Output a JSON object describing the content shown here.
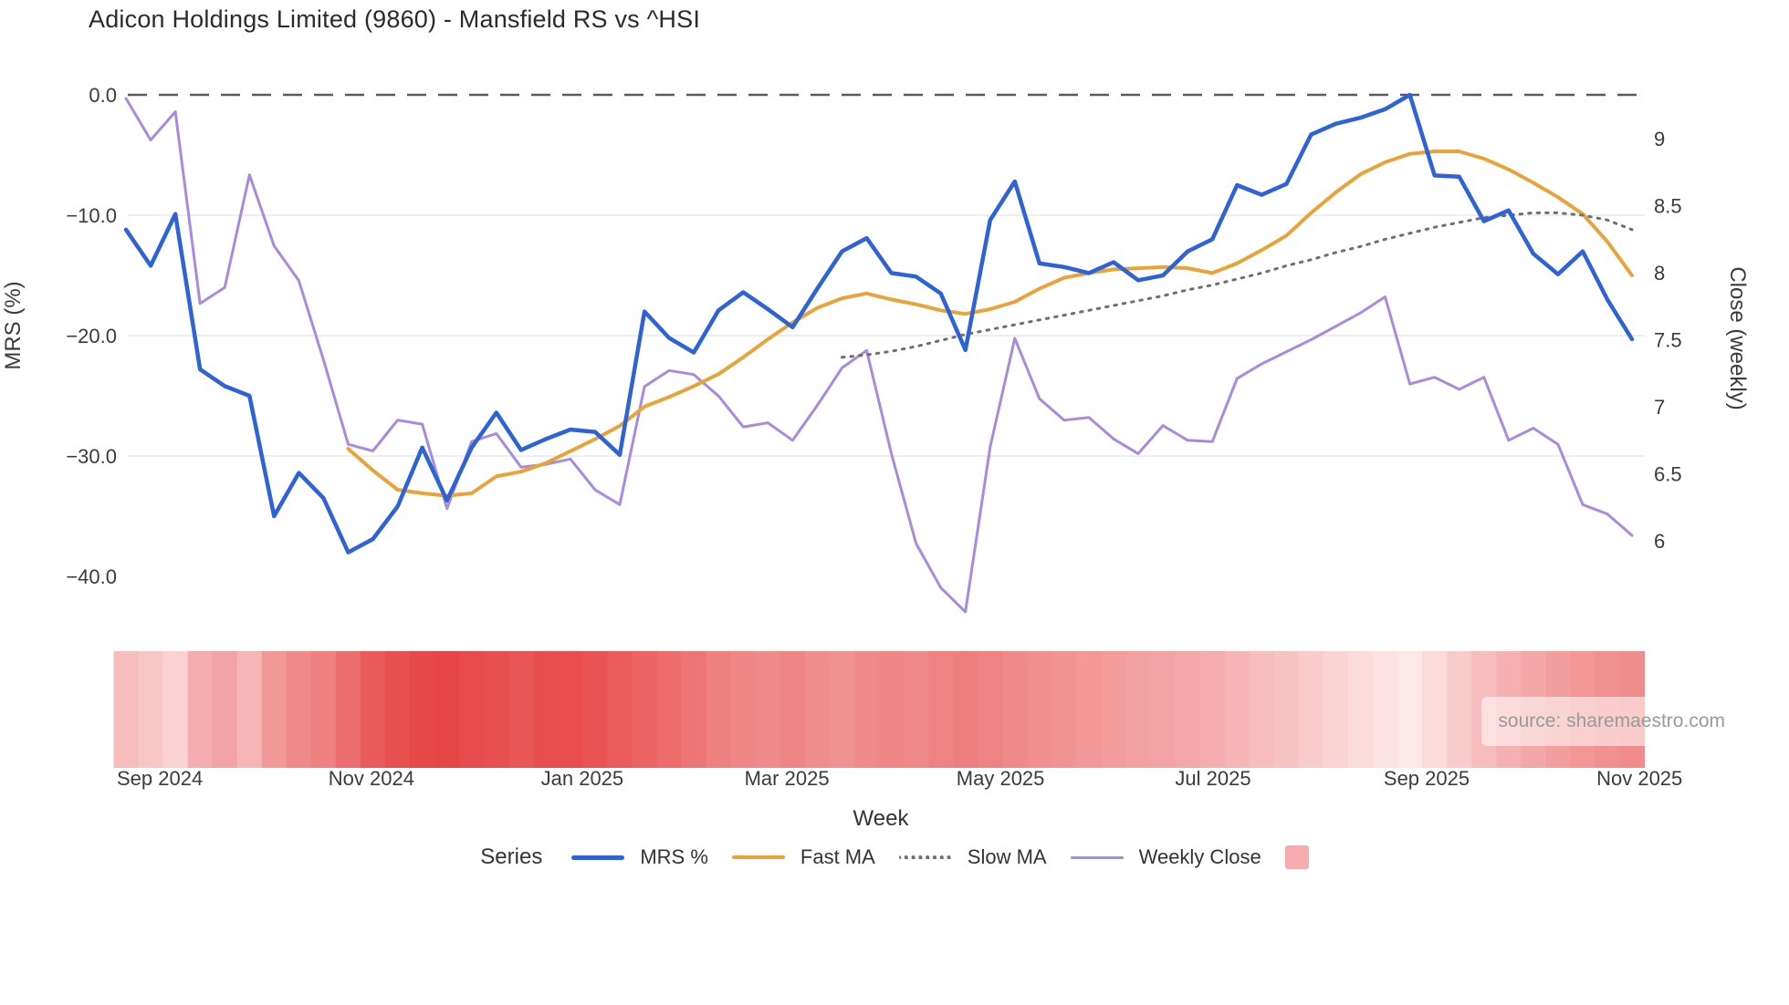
{
  "title": "Adicon Holdings Limited (9860) - Mansfield RS vs ^HSI",
  "source_note": "source: sharemaestro.com",
  "colors": {
    "mrs_blue": "#2d63d6",
    "fast_ma_orange": "#e8a43a",
    "slow_ma_gray": "#6f6f6f",
    "close_purple": "#a88bdc",
    "zero_line": "#5a5a64",
    "gridline": "#ededf5",
    "tick_text": "#3b3b3b",
    "heat_legend_pink": "#f6abae"
  },
  "chart_data": {
    "type": "line",
    "title": "Adicon Holdings Limited (9860) - Mansfield RS vs ^HSI",
    "xlabel": "Week",
    "ylabel_left": "MRS (%)",
    "ylabel_right": "Close (weekly)",
    "ylim_left": [
      -43,
      2
    ],
    "ylim_right": [
      5.4,
      9.35
    ],
    "grid": true,
    "zero_reference_line": 0,
    "legend_position": "bottom",
    "yticks_left": [
      {
        "label": "0.0",
        "value": 0
      },
      {
        "label": "−10.0",
        "value": -10
      },
      {
        "label": "−20.0",
        "value": -20
      },
      {
        "label": "−30.0",
        "value": -30
      },
      {
        "label": "−40.0",
        "value": -40
      }
    ],
    "yticks_right": [
      {
        "label": "9",
        "value": 9
      },
      {
        "label": "8.5",
        "value": 8.5
      },
      {
        "label": "8",
        "value": 8
      },
      {
        "label": "7.5",
        "value": 7.5
      },
      {
        "label": "7",
        "value": 7
      },
      {
        "label": "6.5",
        "value": 6.5
      },
      {
        "label": "6",
        "value": 6
      }
    ],
    "xticks": [
      {
        "label": "Sep 2024",
        "week": 1.37
      },
      {
        "label": "Nov 2024",
        "week": 9.94
      },
      {
        "label": "Jan 2025",
        "week": 18.48
      },
      {
        "label": "Mar 2025",
        "week": 26.77
      },
      {
        "label": "May 2025",
        "week": 35.42
      },
      {
        "label": "Jul 2025",
        "week": 44.03
      },
      {
        "label": "Sep 2025",
        "week": 52.68
      },
      {
        "label": "Nov 2025",
        "week": 61.3
      }
    ],
    "series": [
      {
        "id": "close",
        "name": "Weekly Close",
        "axis": "right",
        "color": "#a88bdc",
        "style": "solid",
        "width": 3,
        "start_week": 0,
        "values": [
          9.3,
          8.99,
          9.2,
          7.77,
          7.89,
          8.73,
          8.2,
          7.94,
          7.35,
          6.72,
          6.67,
          6.9,
          6.87,
          6.24,
          6.74,
          6.8,
          6.55,
          6.57,
          6.61,
          6.38,
          6.27,
          7.15,
          7.27,
          7.24,
          7.08,
          6.85,
          6.88,
          6.75,
          7.01,
          7.29,
          7.42,
          6.65,
          5.98,
          5.65,
          5.47,
          6.7,
          7.51,
          7.06,
          6.9,
          6.92,
          6.76,
          6.65,
          6.86,
          6.75,
          6.74,
          7.21,
          7.32,
          7.41,
          7.5,
          7.6,
          7.7,
          7.82,
          7.17,
          7.22,
          7.13,
          7.22,
          6.75,
          6.84,
          6.72,
          6.27,
          6.2,
          6.04
        ]
      },
      {
        "id": "fast_ma",
        "name": "Fast MA",
        "axis": "left",
        "color": "#e8a43a",
        "style": "solid",
        "width": 4,
        "start_week": 9,
        "values": [
          -29.4,
          -31.2,
          -32.8,
          -33.1,
          -33.3,
          -33.1,
          -31.7,
          -31.3,
          -30.6,
          -29.6,
          -28.6,
          -27.5,
          -25.9,
          -25.1,
          -24.2,
          -23.2,
          -21.8,
          -20.3,
          -18.9,
          -17.7,
          -16.9,
          -16.5,
          -17.0,
          -17.4,
          -17.9,
          -18.2,
          -17.8,
          -17.2,
          -16.1,
          -15.2,
          -14.8,
          -14.5,
          -14.4,
          -14.3,
          -14.4,
          -14.8,
          -14.0,
          -12.9,
          -11.7,
          -9.8,
          -8.1,
          -6.6,
          -5.6,
          -4.9,
          -4.7,
          -4.7,
          -5.3,
          -6.2,
          -7.3,
          -8.5,
          -9.9,
          -12.2,
          -15.0
        ]
      },
      {
        "id": "slow_ma",
        "name": "Slow MA",
        "axis": "left",
        "color": "#6f6f6f",
        "style": "dotted",
        "width": 3,
        "start_week": 29,
        "values": [
          -21.8,
          -21.6,
          -21.3,
          -20.9,
          -20.4,
          -19.9,
          -19.5,
          -19.1,
          -18.7,
          -18.3,
          -17.9,
          -17.5,
          -17.1,
          -16.7,
          -16.2,
          -15.8,
          -15.3,
          -14.8,
          -14.2,
          -13.7,
          -13.1,
          -12.6,
          -12.0,
          -11.5,
          -11.0,
          -10.6,
          -10.2,
          -10.0,
          -9.8,
          -9.8,
          -10.0,
          -10.4,
          -11.2
        ]
      },
      {
        "id": "mrs",
        "name": "MRS %",
        "axis": "left",
        "color": "#2d63d6",
        "style": "solid",
        "width": 4.5,
        "start_week": 0,
        "values": [
          -11.2,
          -14.2,
          -9.9,
          -22.8,
          -24.2,
          -25.0,
          -35.0,
          -31.4,
          -33.5,
          -38.0,
          -36.9,
          -34.2,
          -29.3,
          -33.7,
          -29.3,
          -26.4,
          -29.5,
          -28.6,
          -27.8,
          -28.0,
          -29.9,
          -18.0,
          -20.2,
          -21.4,
          -17.9,
          -16.4,
          -17.8,
          -19.3,
          -16.1,
          -13.0,
          -11.9,
          -14.8,
          -15.1,
          -16.5,
          -21.2,
          -10.4,
          -7.2,
          -14.0,
          -14.3,
          -14.8,
          -13.9,
          -15.4,
          -15.0,
          -13.0,
          -12.0,
          -7.5,
          -8.3,
          -7.4,
          -3.3,
          -2.4,
          -1.9,
          -1.2,
          0.0,
          -6.7,
          -6.8,
          -10.5,
          -9.6,
          -13.2,
          -14.9,
          -13.0,
          -17.0,
          -20.3
        ]
      }
    ],
    "heatmap_strip": {
      "description": "weekly red intensity band under chart",
      "colors": [
        "#f7bcbc",
        "#f9c6c6",
        "#fbd2d2",
        "#f5aeae",
        "#f3a3a3",
        "#f6b6b6",
        "#f19898",
        "#ef8a8a",
        "#ee8080",
        "#ec6e6e",
        "#ea5a5a",
        "#e84f4f",
        "#e74949",
        "#e74646",
        "#e84b4b",
        "#e85050",
        "#e95656",
        "#e84e4e",
        "#e94d4d",
        "#ea5353",
        "#eb5b5b",
        "#ec6464",
        "#ed6d6d",
        "#ee7575",
        "#ef8080",
        "#f08787",
        "#f08b8b",
        "#ef8686",
        "#f08d8d",
        "#f19292",
        "#f08b8b",
        "#ef8787",
        "#f08989",
        "#ef8383",
        "#ee7e7e",
        "#ef8282",
        "#f08a8a",
        "#f18f8f",
        "#f19393",
        "#f29898",
        "#f29c9c",
        "#f3a0a0",
        "#f3a3a3",
        "#f4a8a8",
        "#f5adad",
        "#f6b4b4",
        "#f7bcbc",
        "#f8c3c3",
        "#f9cbcb",
        "#fad4d4",
        "#fbdbdb",
        "#fce2e2",
        "#fde8e8",
        "#fbdada",
        "#f9cccc",
        "#f7bdbd",
        "#f5b0b0",
        "#f4a7a7",
        "#f39e9e",
        "#f29696",
        "#f19090",
        "#f18c8c"
      ]
    }
  },
  "legend": {
    "series_label": "Series",
    "items": [
      {
        "label": "MRS %",
        "swatch": "line",
        "style": "solid",
        "color": "#2d63d6",
        "thickness": 5
      },
      {
        "label": "Fast MA",
        "swatch": "line",
        "style": "solid",
        "color": "#e8a43a",
        "thickness": 4
      },
      {
        "label": "Slow MA",
        "swatch": "line",
        "style": "dotted",
        "color": "#6f6f6f",
        "thickness": 4
      },
      {
        "label": "Weekly Close",
        "swatch": "line",
        "style": "solid",
        "color": "#a88bdc",
        "thickness": 3
      },
      {
        "label": "",
        "swatch": "square",
        "style": "solid",
        "color": "#f6abae",
        "thickness": 26
      }
    ]
  }
}
